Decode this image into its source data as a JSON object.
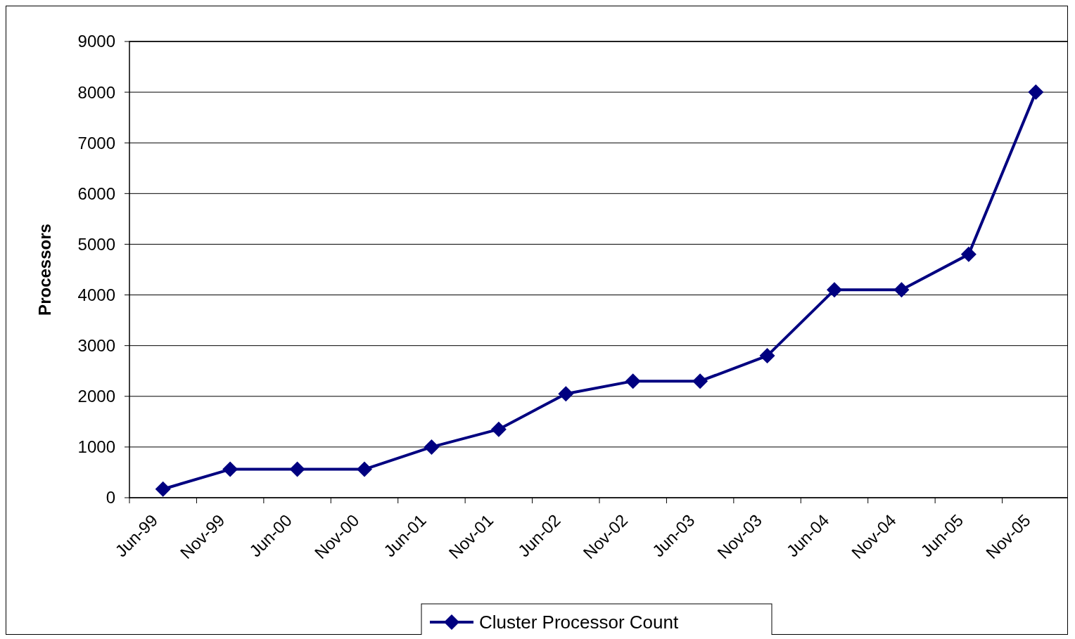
{
  "chart_data": {
    "type": "line",
    "ylabel": "Processors",
    "categories": [
      "Jun-99",
      "Nov-99",
      "Jun-00",
      "Nov-00",
      "Jun-01",
      "Nov-01",
      "Jun-02",
      "Nov-02",
      "Jun-03",
      "Nov-03",
      "Jun-04",
      "Nov-04",
      "Jun-05",
      "Nov-05"
    ],
    "series": [
      {
        "name": "Cluster Processor Count",
        "color": "#000080",
        "values": [
          170,
          560,
          560,
          560,
          1000,
          1350,
          2050,
          2300,
          2300,
          2800,
          4100,
          4100,
          4800,
          8000
        ]
      }
    ],
    "ylim": [
      0,
      9000
    ],
    "yticks": [
      0,
      1000,
      2000,
      3000,
      4000,
      5000,
      6000,
      7000,
      8000,
      9000
    ],
    "grid": "y",
    "legend": "bottom",
    "marker": "diamond",
    "line_style": "solid"
  }
}
